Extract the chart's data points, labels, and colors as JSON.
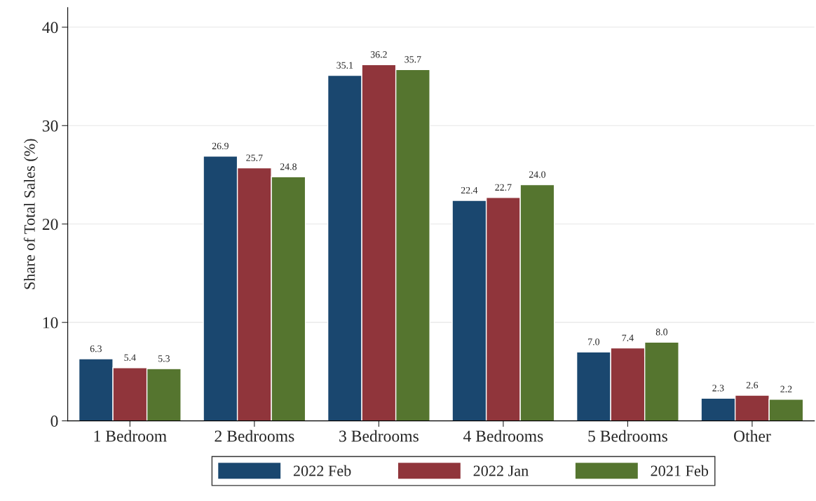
{
  "chart_data": {
    "type": "bar",
    "ylabel": "Share of Total Sales (%)",
    "categories": [
      "1 Bedroom",
      "2 Bedrooms",
      "3 Bedrooms",
      "4 Bedrooms",
      "5 Bedrooms",
      "Other"
    ],
    "series": [
      {
        "name": "2022 Feb",
        "color": "#1a476f",
        "values": [
          6.3,
          26.9,
          35.1,
          22.4,
          7.0,
          2.3
        ],
        "value_labels": [
          "6.3",
          "26.9",
          "35.1",
          "22.4",
          "7.0",
          "2.3"
        ]
      },
      {
        "name": "2022 Jan",
        "color": "#90353b",
        "values": [
          5.4,
          25.7,
          36.2,
          22.7,
          7.4,
          2.6
        ],
        "value_labels": [
          "5.4",
          "25.7",
          "36.2",
          "22.7",
          "7.4",
          "2.6"
        ]
      },
      {
        "name": "2021 Feb",
        "color": "#55752f",
        "values": [
          5.3,
          24.8,
          35.7,
          24.0,
          8.0,
          2.2
        ],
        "value_labels": [
          "5.3",
          "24.8",
          "35.7",
          "24.0",
          "8.0",
          "2.2"
        ]
      }
    ],
    "ylim": [
      0,
      42
    ],
    "yticks": [
      0,
      10,
      20,
      30,
      40
    ],
    "grid": "y",
    "legend": "bottom"
  }
}
